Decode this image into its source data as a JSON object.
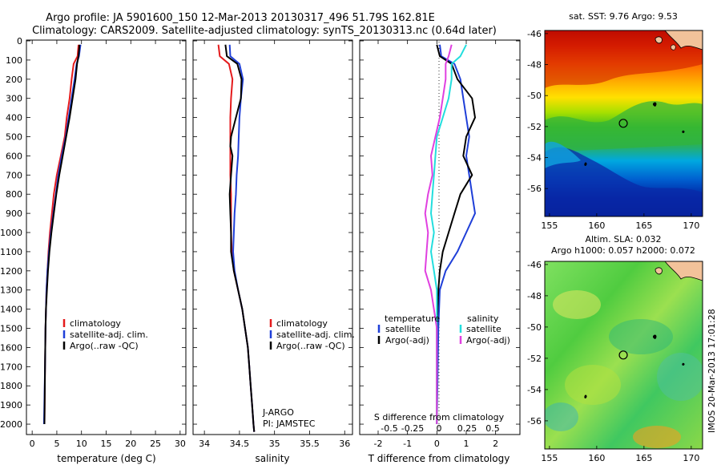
{
  "header": {
    "title_line1": "Argo profile: JA 5901600_150 12-Mar-2013 20130317_496 51.79S 162.81E",
    "title_line2": "Climatology: CARS2009. Satellite-adjusted climatology: synTS_20130313.nc (0.64d later)"
  },
  "depth_axis": {
    "ylim": [
      0,
      2050
    ],
    "ticks": [
      0,
      100,
      200,
      300,
      400,
      500,
      600,
      700,
      800,
      900,
      1000,
      1100,
      1200,
      1300,
      1400,
      1500,
      1600,
      1700,
      1800,
      1900,
      2000
    ]
  },
  "colors": {
    "climatology": "#e41a1c",
    "satellite": "#1f3fd8",
    "argo": "#000000",
    "satellite_s": "#22dede",
    "argo_s": "#e040e0",
    "land": "#f2c29a"
  },
  "chart_data": [
    {
      "type": "line",
      "name": "temperature-panel",
      "xlabel": "temperature (deg C)",
      "xlim": [
        -1,
        31
      ],
      "xticks": [
        0,
        5,
        10,
        15,
        20,
        25,
        30
      ],
      "legend": [
        "climatology",
        "satellite-adj. clim.",
        "Argo(..raw -QC)"
      ],
      "series": [
        {
          "name": "climatology",
          "color": "#e41a1c",
          "points": [
            [
              9.4,
              20
            ],
            [
              9.2,
              80
            ],
            [
              8.4,
              120
            ],
            [
              8.0,
              200
            ],
            [
              7.6,
              300
            ],
            [
              7.0,
              400
            ],
            [
              6.6,
              500
            ],
            [
              5.8,
              600
            ],
            [
              5.0,
              700
            ],
            [
              4.4,
              800
            ],
            [
              4.0,
              900
            ],
            [
              3.6,
              1000
            ],
            [
              3.3,
              1100
            ],
            [
              3.1,
              1200
            ],
            [
              2.9,
              1300
            ],
            [
              2.8,
              1400
            ],
            [
              2.7,
              1500
            ],
            [
              2.6,
              1700
            ],
            [
              2.5,
              2000
            ]
          ]
        },
        {
          "name": "satellite-adj. clim.",
          "color": "#1f3fd8",
          "points": [
            [
              9.8,
              20
            ],
            [
              9.5,
              80
            ],
            [
              9.0,
              120
            ],
            [
              8.6,
              200
            ],
            [
              8.0,
              300
            ],
            [
              7.4,
              400
            ],
            [
              6.8,
              500
            ],
            [
              6.0,
              600
            ],
            [
              5.3,
              700
            ],
            [
              4.8,
              800
            ],
            [
              4.3,
              900
            ],
            [
              3.8,
              1000
            ],
            [
              3.4,
              1100
            ],
            [
              3.1,
              1200
            ],
            [
              2.9,
              1300
            ],
            [
              2.8,
              1400
            ],
            [
              2.7,
              1500
            ],
            [
              2.6,
              1700
            ],
            [
              2.4,
              2000
            ]
          ]
        },
        {
          "name": "Argo(..raw -QC)",
          "color": "#000000",
          "points": [
            [
              9.6,
              20
            ],
            [
              9.4,
              80
            ],
            [
              9.1,
              120
            ],
            [
              8.8,
              200
            ],
            [
              8.2,
              300
            ],
            [
              7.6,
              400
            ],
            [
              6.9,
              500
            ],
            [
              6.2,
              600
            ],
            [
              5.5,
              700
            ],
            [
              4.9,
              800
            ],
            [
              4.4,
              900
            ],
            [
              3.9,
              1000
            ],
            [
              3.5,
              1100
            ],
            [
              3.2,
              1200
            ],
            [
              3.0,
              1300
            ],
            [
              2.8,
              1400
            ],
            [
              2.7,
              1500
            ],
            [
              2.6,
              1700
            ],
            [
              2.5,
              2000
            ]
          ]
        }
      ]
    },
    {
      "type": "line",
      "name": "salinity-panel",
      "xlabel": "salinity",
      "xlim": [
        33.85,
        36.1
      ],
      "xticks": [
        34,
        34.5,
        35,
        35.5,
        36
      ],
      "legend": [
        "climatology",
        "satellite-adj. clim.",
        "Argo(..raw -QC)"
      ],
      "annotations": [
        "J-ARGO",
        "PI: JAMSTEC"
      ],
      "series": [
        {
          "name": "climatology",
          "color": "#e41a1c",
          "points": [
            [
              34.2,
              20
            ],
            [
              34.22,
              80
            ],
            [
              34.35,
              120
            ],
            [
              34.4,
              200
            ],
            [
              34.38,
              300
            ],
            [
              34.37,
              400
            ],
            [
              34.37,
              500
            ],
            [
              34.37,
              600
            ],
            [
              34.37,
              700
            ],
            [
              34.38,
              800
            ],
            [
              34.38,
              900
            ],
            [
              34.38,
              1000
            ],
            [
              34.39,
              1100
            ],
            [
              34.42,
              1200
            ],
            [
              34.48,
              1300
            ],
            [
              34.54,
              1400
            ],
            [
              34.58,
              1500
            ],
            [
              34.62,
              1600
            ],
            [
              34.64,
              1700
            ],
            [
              34.66,
              1800
            ],
            [
              34.68,
              1900
            ],
            [
              34.7,
              2000
            ],
            [
              34.71,
              2040
            ]
          ]
        },
        {
          "name": "satellite-adj. clim.",
          "color": "#1f3fd8",
          "points": [
            [
              34.36,
              20
            ],
            [
              34.37,
              80
            ],
            [
              34.5,
              120
            ],
            [
              34.55,
              200
            ],
            [
              34.52,
              300
            ],
            [
              34.5,
              400
            ],
            [
              34.49,
              500
            ],
            [
              34.48,
              600
            ],
            [
              34.46,
              700
            ],
            [
              34.45,
              800
            ],
            [
              34.43,
              900
            ],
            [
              34.42,
              1000
            ],
            [
              34.41,
              1100
            ],
            [
              34.43,
              1200
            ],
            [
              34.48,
              1300
            ],
            [
              34.54,
              1400
            ],
            [
              34.58,
              1500
            ],
            [
              34.62,
              1600
            ],
            [
              34.64,
              1700
            ],
            [
              34.66,
              1800
            ],
            [
              34.68,
              1900
            ],
            [
              34.7,
              2000
            ],
            [
              34.71,
              2040
            ]
          ]
        },
        {
          "name": "Argo(..raw -QC)",
          "color": "#000000",
          "points": [
            [
              34.3,
              20
            ],
            [
              34.32,
              80
            ],
            [
              34.47,
              120
            ],
            [
              34.53,
              200
            ],
            [
              34.52,
              300
            ],
            [
              34.45,
              400
            ],
            [
              34.38,
              500
            ],
            [
              34.37,
              550
            ],
            [
              34.4,
              600
            ],
            [
              34.38,
              700
            ],
            [
              34.36,
              800
            ],
            [
              34.37,
              900
            ],
            [
              34.38,
              1000
            ],
            [
              34.38,
              1100
            ],
            [
              34.42,
              1200
            ],
            [
              34.48,
              1300
            ],
            [
              34.54,
              1400
            ],
            [
              34.58,
              1500
            ],
            [
              34.62,
              1600
            ],
            [
              34.64,
              1700
            ],
            [
              34.66,
              1800
            ],
            [
              34.68,
              1900
            ],
            [
              34.7,
              2000
            ],
            [
              34.71,
              2040
            ]
          ]
        }
      ]
    },
    {
      "type": "line",
      "name": "difference-panel",
      "xlabel": "T difference from climatology",
      "xlabel2": "S difference from climatology",
      "xlim": [
        -2.6,
        2.8
      ],
      "xticks": [
        -2,
        -1,
        0,
        1,
        2
      ],
      "xtick_labels": [
        "-2",
        "-1",
        "0",
        "1",
        "2"
      ],
      "xticks_s": [
        "-0.5",
        "-0.25",
        "0",
        "0.25",
        "0.5"
      ],
      "legend_header_t": "temperature",
      "legend_header_s": "salinity",
      "legend": [
        "satellite",
        "Argo(-adj)",
        "satellite",
        "Argo(-adj)"
      ],
      "series": [
        {
          "name": "satellite",
          "color": "#1f3fd8",
          "points": [
            [
              0.1,
              20
            ],
            [
              0.15,
              80
            ],
            [
              0.6,
              120
            ],
            [
              0.8,
              200
            ],
            [
              0.9,
              300
            ],
            [
              1.0,
              400
            ],
            [
              1.1,
              500
            ],
            [
              1.0,
              600
            ],
            [
              1.1,
              700
            ],
            [
              1.2,
              800
            ],
            [
              1.3,
              900
            ],
            [
              1.0,
              1000
            ],
            [
              0.7,
              1100
            ],
            [
              0.3,
              1200
            ],
            [
              0.1,
              1300
            ],
            [
              0.05,
              1500
            ],
            [
              0.0,
              2000
            ]
          ]
        },
        {
          "name": "Argo(-adj)",
          "color": "#000000",
          "points": [
            [
              0.0,
              20
            ],
            [
              0.1,
              80
            ],
            [
              0.5,
              120
            ],
            [
              0.7,
              200
            ],
            [
              1.2,
              300
            ],
            [
              1.3,
              400
            ],
            [
              1.0,
              500
            ],
            [
              0.9,
              600
            ],
            [
              1.2,
              700
            ],
            [
              0.8,
              800
            ],
            [
              0.6,
              900
            ],
            [
              0.4,
              1000
            ],
            [
              0.2,
              1100
            ],
            [
              0.1,
              1200
            ],
            [
              0.05,
              1300
            ],
            [
              0.0,
              1500
            ],
            [
              0.0,
              2000
            ]
          ]
        },
        {
          "name": "satellite",
          "color": "#22dede",
          "points": [
            [
              1.0,
              20
            ],
            [
              0.8,
              80
            ],
            [
              0.5,
              120
            ],
            [
              0.5,
              200
            ],
            [
              0.4,
              300
            ],
            [
              0.2,
              400
            ],
            [
              0.0,
              500
            ],
            [
              -0.05,
              600
            ],
            [
              -0.1,
              700
            ],
            [
              -0.15,
              800
            ],
            [
              -0.2,
              900
            ],
            [
              -0.1,
              1000
            ],
            [
              -0.2,
              1100
            ],
            [
              -0.1,
              1200
            ],
            [
              0.0,
              1300
            ],
            [
              0.0,
              1500
            ],
            [
              0.0,
              2000
            ]
          ]
        },
        {
          "name": "Argo(-adj)",
          "color": "#e040e0",
          "points": [
            [
              0.5,
              20
            ],
            [
              0.4,
              80
            ],
            [
              0.3,
              120
            ],
            [
              0.3,
              200
            ],
            [
              0.2,
              300
            ],
            [
              0.1,
              400
            ],
            [
              -0.05,
              500
            ],
            [
              -0.2,
              600
            ],
            [
              -0.15,
              700
            ],
            [
              -0.3,
              800
            ],
            [
              -0.4,
              900
            ],
            [
              -0.3,
              1000
            ],
            [
              -0.35,
              1100
            ],
            [
              -0.4,
              1200
            ],
            [
              -0.2,
              1300
            ],
            [
              0.0,
              1500
            ],
            [
              0.0,
              2000
            ]
          ]
        }
      ]
    }
  ],
  "maps": [
    {
      "name": "sst-map",
      "title": "sat. SST: 9.76 Argo: 9.53",
      "xlim": [
        154.5,
        171.2
      ],
      "ylim": [
        -57.8,
        -45.8
      ],
      "xticks": [
        155,
        160,
        165,
        170
      ],
      "yticks": [
        -46,
        -48,
        -50,
        -52,
        -54,
        -56
      ],
      "marker": [
        162.81,
        -51.79
      ]
    },
    {
      "name": "sla-map",
      "title": "Altim. SLA: 0.032",
      "subtitle": "Argo h1000: 0.057 h2000: 0.072",
      "xlim": [
        154.5,
        171.2
      ],
      "ylim": [
        -57.8,
        -45.8
      ],
      "xticks": [
        155,
        160,
        165,
        170
      ],
      "yticks": [
        -46,
        -48,
        -50,
        -52,
        -54,
        -56
      ],
      "marker": [
        162.81,
        -51.79
      ]
    }
  ],
  "footer": {
    "stamp": "IMOS 20-Mar-2013 17:01:28"
  }
}
